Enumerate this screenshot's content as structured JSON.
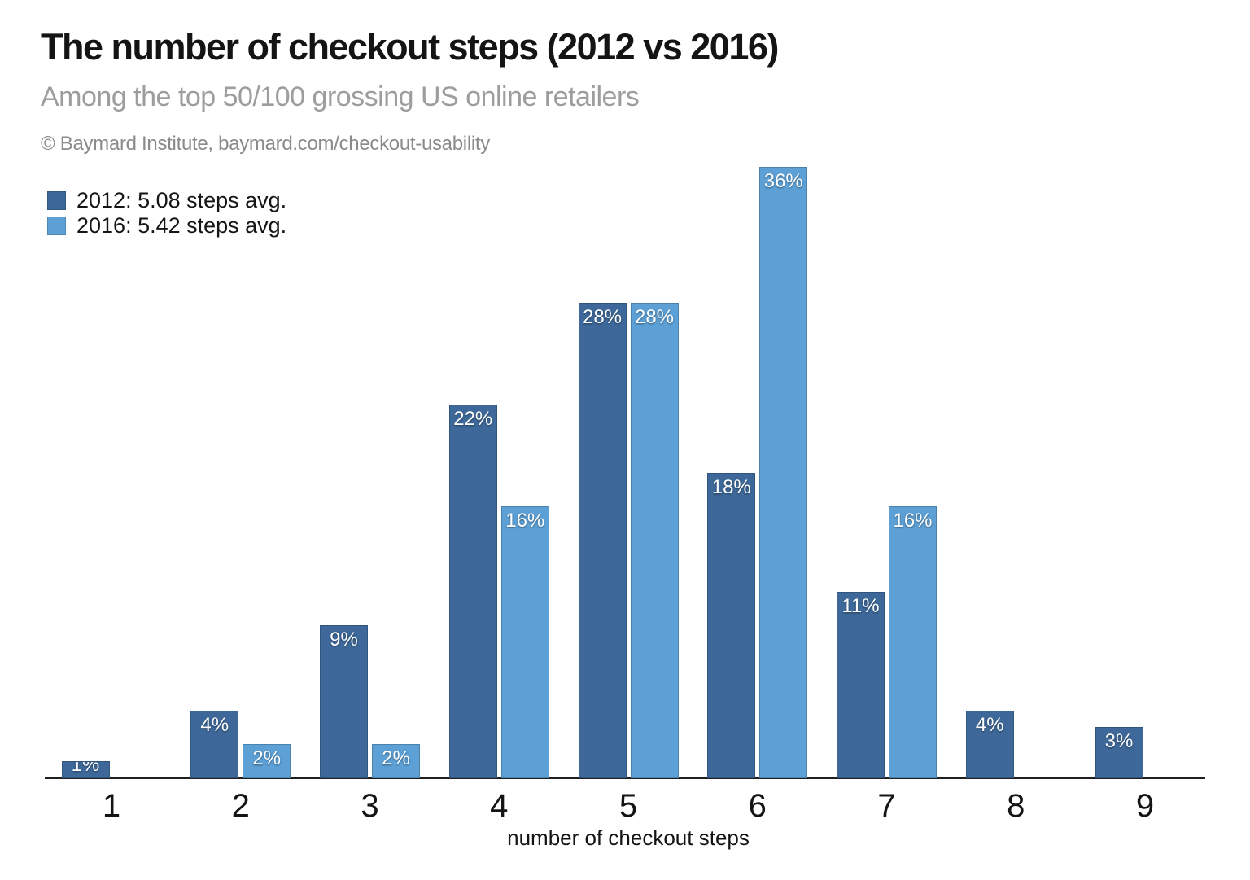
{
  "header": {
    "title": "The number of checkout steps (2012 vs 2016)",
    "subtitle": "Among the top 50/100 grossing US online retailers",
    "attribution": "© Baymard Institute, baymard.com/checkout-usability"
  },
  "legend": [
    {
      "label": "2012: 5.08 steps avg.",
      "color": "#3d6899"
    },
    {
      "label": "2016: 5.42 steps avg.",
      "color": "#5ca0d6"
    }
  ],
  "chart_data": {
    "type": "bar",
    "title": "The number of checkout steps (2012 vs 2016)",
    "subtitle": "Among the top 50/100 grossing US online retailers",
    "categories": [
      "1",
      "2",
      "3",
      "4",
      "5",
      "6",
      "7",
      "8",
      "9"
    ],
    "series": [
      {
        "name": "2012",
        "legend_label": "2012: 5.08 steps avg.",
        "color": "#3d6899",
        "values": [
          1,
          4,
          9,
          22,
          28,
          18,
          11,
          4,
          3
        ]
      },
      {
        "name": "2016",
        "legend_label": "2016: 5.42 steps avg.",
        "color": "#5ca0d6",
        "values": [
          null,
          2,
          2,
          16,
          28,
          36,
          16,
          null,
          null
        ]
      }
    ],
    "value_suffix": "%",
    "xlabel": "number of checkout steps",
    "ylabel": "",
    "ylim": [
      0,
      38
    ],
    "grid": false,
    "data_labels": true,
    "legend_position": "top-left"
  }
}
